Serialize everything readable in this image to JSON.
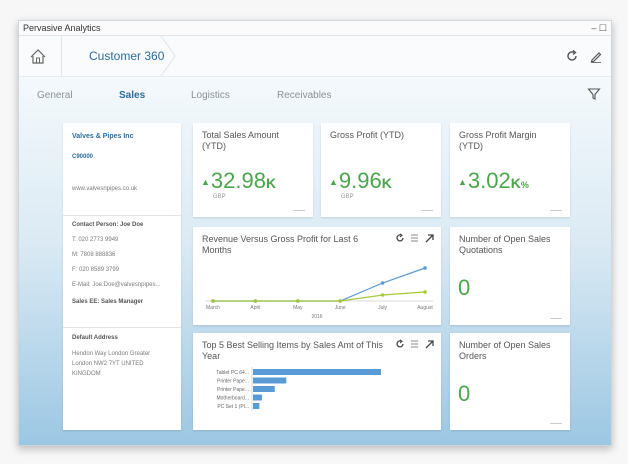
{
  "window": {
    "title": "Pervasive Analytics",
    "controls": "– ☐"
  },
  "header": {
    "breadcrumb": "Customer 360"
  },
  "tabs": [
    {
      "label": "General"
    },
    {
      "label": "Sales"
    },
    {
      "label": "Logistics"
    },
    {
      "label": "Receivables"
    }
  ],
  "active_tab": "Sales",
  "customer": {
    "name": "Valves & Pipes Inc",
    "id": "C90000",
    "website": "www.valvesnpipes.co.uk",
    "contact_heading": "Contact Person: Joe Doe",
    "phone": "T: 020 2773 9949",
    "mobile": "M: 7808 888836",
    "fax": "F: 020 8589 3799",
    "email": "E-Mail: Joe.Doe@valvesnpipes...",
    "sales_ee": "Sales EE: Sales Manager",
    "address_heading": "Default Address",
    "address_line1": "Hendon Way London Greater",
    "address_line2": "London NW2 7YT UNITED",
    "address_line3": "KINGDOM"
  },
  "kpis": {
    "total_sales": {
      "title": "Total Sales Amount (YTD)",
      "value": "32.98",
      "unit": "K",
      "currency": "GBP"
    },
    "gross_profit": {
      "title": "Gross Profit (YTD)",
      "value": "9.96",
      "unit": "K",
      "currency": "GBP"
    },
    "gross_margin": {
      "title": "Gross Profit Margin (YTD)",
      "value": "3.02",
      "unit": "K",
      "unit_suffix": "%"
    },
    "open_quotes": {
      "title": "Number of Open Sales Quotations",
      "value": "0"
    },
    "open_orders": {
      "title": "Number of Open Sales Orders",
      "value": "0"
    }
  },
  "colors": {
    "accent": "#2b6c9e",
    "positive": "#4aa64a",
    "series_revenue": "#5b9bd5",
    "series_profit": "#a3c93a",
    "bar": "#5b9bd5"
  },
  "chart_data": [
    {
      "type": "line",
      "title": "Revenue Versus Gross Profit for Last 6 Months",
      "categories": [
        "March",
        "April",
        "May",
        "June",
        "July",
        "August"
      ],
      "xlabel": "2016",
      "series": [
        {
          "values": [
            0,
            0,
            0,
            0,
            6,
            11
          ]
        },
        {
          "values": [
            0,
            0,
            0,
            0,
            2,
            3
          ]
        }
      ],
      "ylim": [
        0,
        12
      ]
    },
    {
      "type": "bar",
      "orientation": "horizontal",
      "title": "Top 5 Best Selling Items by Sales Amt of This Year",
      "categories": [
        "Tablet PC 64...",
        "Printer Pape...",
        "Printer Pape...",
        "Motherboard...",
        "PC Set 1 (Pl..."
      ],
      "values": [
        100,
        26,
        17,
        7,
        5
      ],
      "xlim": [
        0,
        100
      ]
    }
  ]
}
